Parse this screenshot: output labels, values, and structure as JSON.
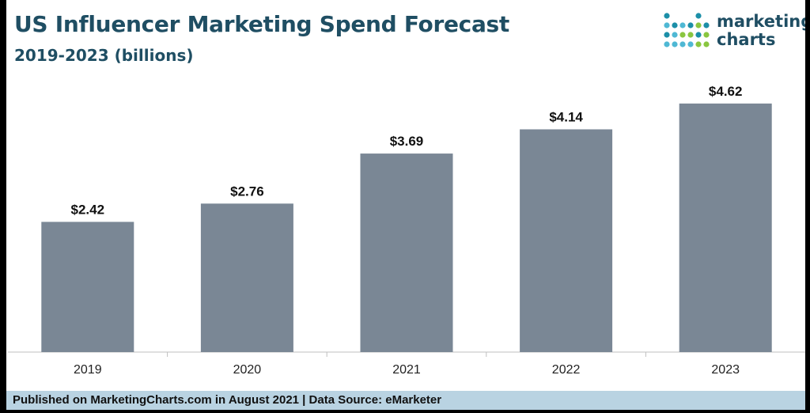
{
  "header": {
    "title": "US Influencer Marketing Spend Forecast",
    "subtitle": "2019-2023 (billions)"
  },
  "logo": {
    "line1": "marketing",
    "line2": "charts",
    "icon": "dot-grid-logo-icon",
    "dot_colors": [
      "#1c8fa8",
      "#8ac640",
      "#4fb8d4",
      "#1f4e63"
    ]
  },
  "chart_data": {
    "type": "bar",
    "categories": [
      "2019",
      "2020",
      "2021",
      "2022",
      "2023"
    ],
    "values": [
      2.42,
      2.76,
      3.69,
      4.14,
      4.62
    ],
    "data_labels": [
      "$2.42",
      "$2.76",
      "$3.69",
      "$4.14",
      "$4.62"
    ],
    "title": "US Influencer Marketing Spend Forecast",
    "subtitle": "2019-2023 (billions)",
    "xlabel": "",
    "ylabel": "",
    "ylim": [
      0,
      5
    ],
    "grid": false,
    "bar_color": "#7a8795"
  },
  "footer": {
    "text": "Published on MarketingCharts.com in August 2021 | Data Source: eMarketer"
  }
}
